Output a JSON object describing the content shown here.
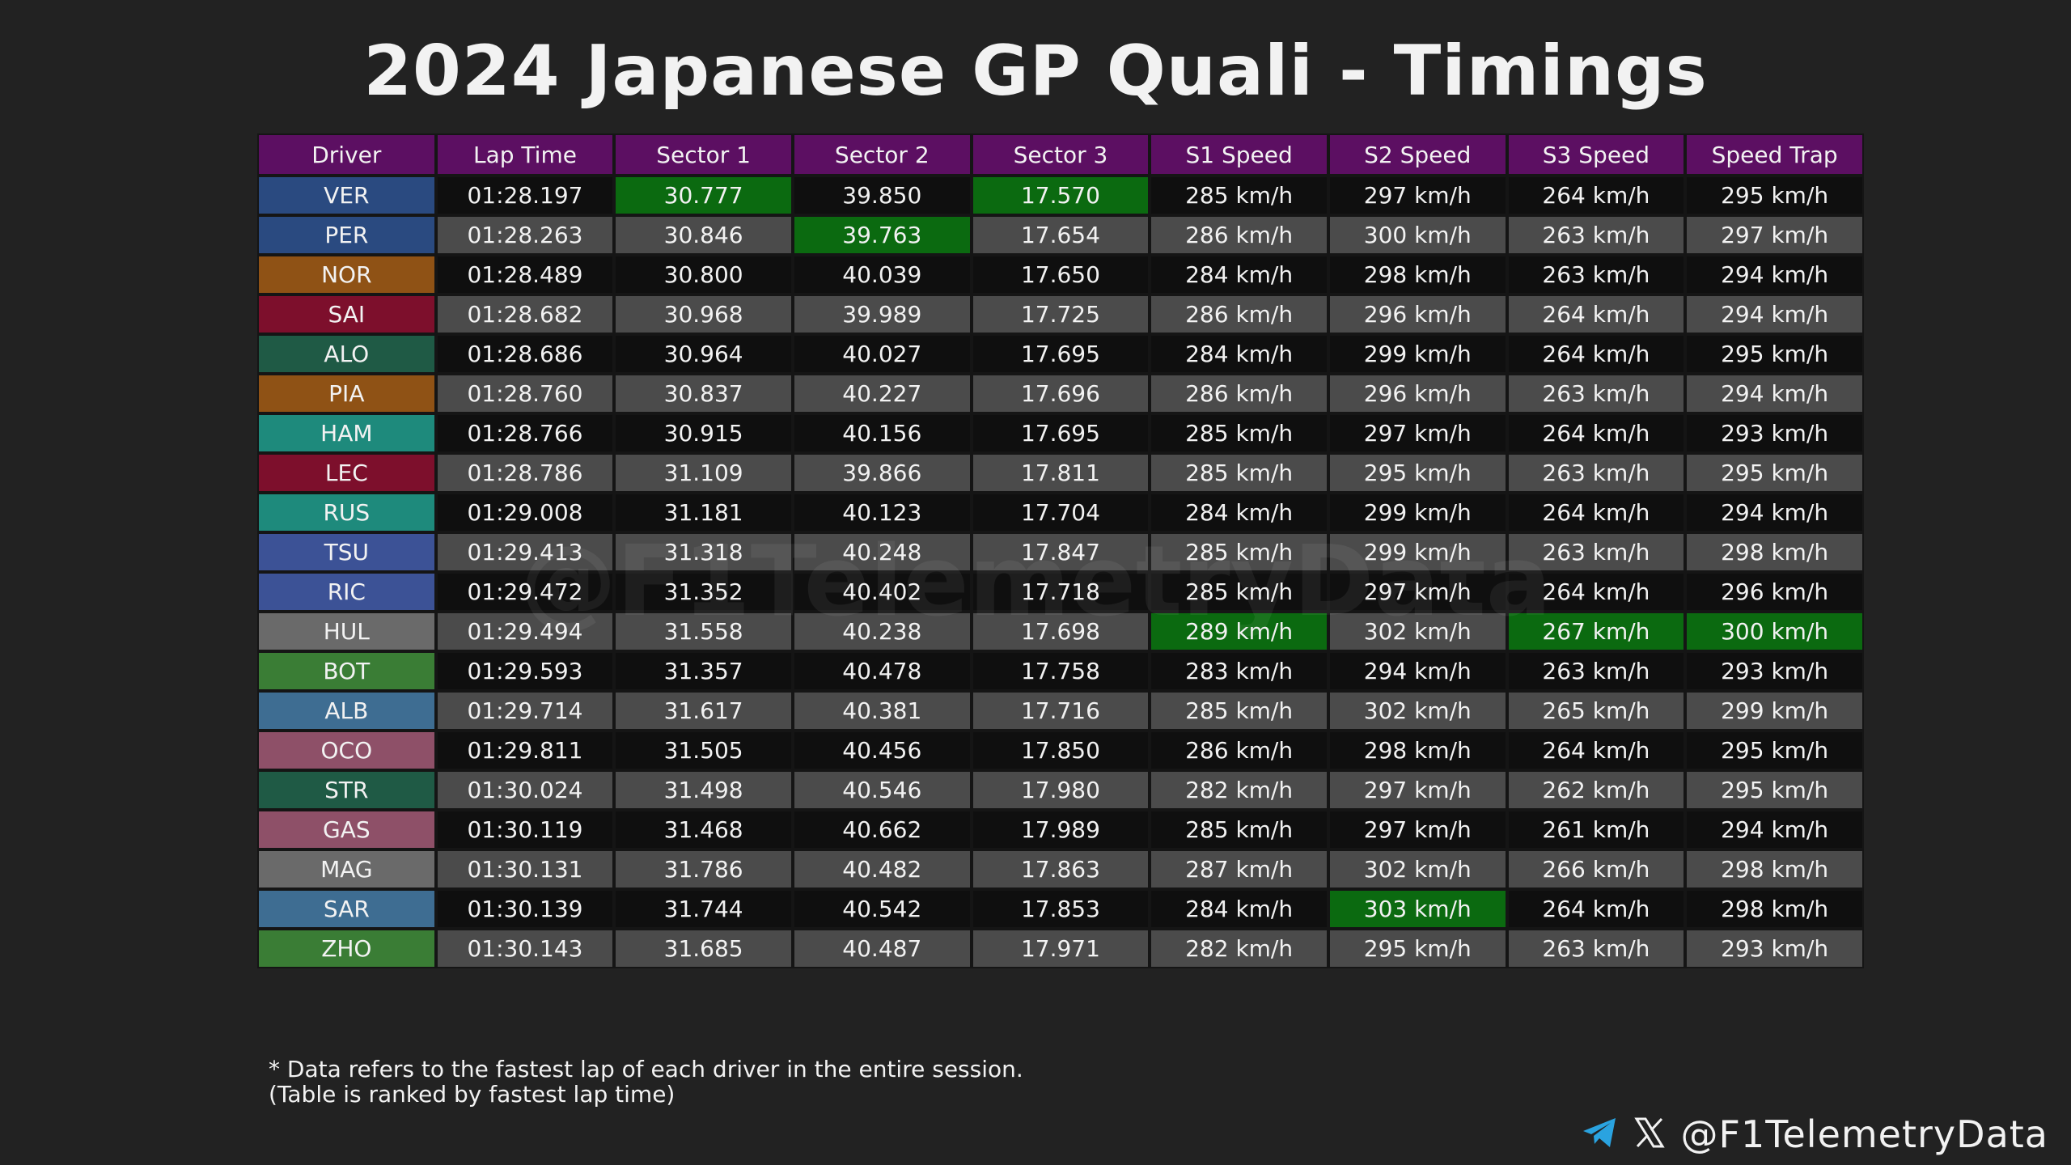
{
  "title": "2024 Japanese GP Quali - Timings",
  "watermark": "@F1TelemetryData",
  "footnote": {
    "line1": "* Data refers to the fastest lap of each driver in the entire session.",
    "line2": "(Table is ranked by fastest lap time)"
  },
  "brand": {
    "handle": "@F1TelemetryData",
    "icons": [
      "telegram-icon",
      "x-icon"
    ]
  },
  "colors": {
    "header": "#5c0f62",
    "best": "#0b6a10",
    "row_dark": "#0f0f0f",
    "row_light": "#4b4b4b",
    "background": "#222222"
  },
  "chart_data": {
    "type": "table",
    "title": "2024 Japanese GP Quali - Timings",
    "columns": [
      "Driver",
      "Lap Time",
      "Sector 1",
      "Sector 2",
      "Sector 3",
      "S1 Speed",
      "S2 Speed",
      "S3 Speed",
      "Speed Trap"
    ],
    "rows": [
      {
        "driver": "VER",
        "color": "#2a4a80",
        "values": [
          "01:28.197",
          "30.777",
          "39.850",
          "17.570",
          "285 km/h",
          "297 km/h",
          "264 km/h",
          "295 km/h"
        ],
        "best": [
          1,
          3
        ]
      },
      {
        "driver": "PER",
        "color": "#2a4a80",
        "values": [
          "01:28.263",
          "30.846",
          "39.763",
          "17.654",
          "286 km/h",
          "300 km/h",
          "263 km/h",
          "297 km/h"
        ],
        "best": [
          2
        ]
      },
      {
        "driver": "NOR",
        "color": "#8f5215",
        "values": [
          "01:28.489",
          "30.800",
          "40.039",
          "17.650",
          "284 km/h",
          "298 km/h",
          "263 km/h",
          "294 km/h"
        ],
        "best": []
      },
      {
        "driver": "SAI",
        "color": "#7d0f2c",
        "values": [
          "01:28.682",
          "30.968",
          "39.989",
          "17.725",
          "286 km/h",
          "296 km/h",
          "264 km/h",
          "294 km/h"
        ],
        "best": []
      },
      {
        "driver": "ALO",
        "color": "#1f5a45",
        "values": [
          "01:28.686",
          "30.964",
          "40.027",
          "17.695",
          "284 km/h",
          "299 km/h",
          "264 km/h",
          "295 km/h"
        ],
        "best": []
      },
      {
        "driver": "PIA",
        "color": "#8f5215",
        "values": [
          "01:28.760",
          "30.837",
          "40.227",
          "17.696",
          "286 km/h",
          "296 km/h",
          "263 km/h",
          "294 km/h"
        ],
        "best": []
      },
      {
        "driver": "HAM",
        "color": "#1e8a7c",
        "values": [
          "01:28.766",
          "30.915",
          "40.156",
          "17.695",
          "285 km/h",
          "297 km/h",
          "264 km/h",
          "293 km/h"
        ],
        "best": []
      },
      {
        "driver": "LEC",
        "color": "#7d0f2c",
        "values": [
          "01:28.786",
          "31.109",
          "39.866",
          "17.811",
          "285 km/h",
          "295 km/h",
          "263 km/h",
          "295 km/h"
        ],
        "best": []
      },
      {
        "driver": "RUS",
        "color": "#1e8a7c",
        "values": [
          "01:29.008",
          "31.181",
          "40.123",
          "17.704",
          "284 km/h",
          "299 km/h",
          "264 km/h",
          "294 km/h"
        ],
        "best": []
      },
      {
        "driver": "TSU",
        "color": "#3c5296",
        "values": [
          "01:29.413",
          "31.318",
          "40.248",
          "17.847",
          "285 km/h",
          "299 km/h",
          "263 km/h",
          "298 km/h"
        ],
        "best": []
      },
      {
        "driver": "RIC",
        "color": "#3c5296",
        "values": [
          "01:29.472",
          "31.352",
          "40.402",
          "17.718",
          "285 km/h",
          "297 km/h",
          "264 km/h",
          "296 km/h"
        ],
        "best": []
      },
      {
        "driver": "HUL",
        "color": "#6a6a6a",
        "values": [
          "01:29.494",
          "31.558",
          "40.238",
          "17.698",
          "289 km/h",
          "302 km/h",
          "267 km/h",
          "300 km/h"
        ],
        "best": [
          4,
          6,
          7
        ]
      },
      {
        "driver": "BOT",
        "color": "#3a7d35",
        "values": [
          "01:29.593",
          "31.357",
          "40.478",
          "17.758",
          "283 km/h",
          "294 km/h",
          "263 km/h",
          "293 km/h"
        ],
        "best": []
      },
      {
        "driver": "ALB",
        "color": "#3e6d92",
        "values": [
          "01:29.714",
          "31.617",
          "40.381",
          "17.716",
          "285 km/h",
          "302 km/h",
          "265 km/h",
          "299 km/h"
        ],
        "best": []
      },
      {
        "driver": "OCO",
        "color": "#8e5068",
        "values": [
          "01:29.811",
          "31.505",
          "40.456",
          "17.850",
          "286 km/h",
          "298 km/h",
          "264 km/h",
          "295 km/h"
        ],
        "best": []
      },
      {
        "driver": "STR",
        "color": "#1f5a45",
        "values": [
          "01:30.024",
          "31.498",
          "40.546",
          "17.980",
          "282 km/h",
          "297 km/h",
          "262 km/h",
          "295 km/h"
        ],
        "best": []
      },
      {
        "driver": "GAS",
        "color": "#8e5068",
        "values": [
          "01:30.119",
          "31.468",
          "40.662",
          "17.989",
          "285 km/h",
          "297 km/h",
          "261 km/h",
          "294 km/h"
        ],
        "best": []
      },
      {
        "driver": "MAG",
        "color": "#6a6a6a",
        "values": [
          "01:30.131",
          "31.786",
          "40.482",
          "17.863",
          "287 km/h",
          "302 km/h",
          "266 km/h",
          "298 km/h"
        ],
        "best": []
      },
      {
        "driver": "SAR",
        "color": "#3e6d92",
        "values": [
          "01:30.139",
          "31.744",
          "40.542",
          "17.853",
          "284 km/h",
          "303 km/h",
          "264 km/h",
          "298 km/h"
        ],
        "best": [
          5
        ]
      },
      {
        "driver": "ZHO",
        "color": "#3a7d35",
        "values": [
          "01:30.143",
          "31.685",
          "40.487",
          "17.971",
          "282 km/h",
          "295 km/h",
          "263 km/h",
          "293 km/h"
        ],
        "best": []
      }
    ]
  }
}
